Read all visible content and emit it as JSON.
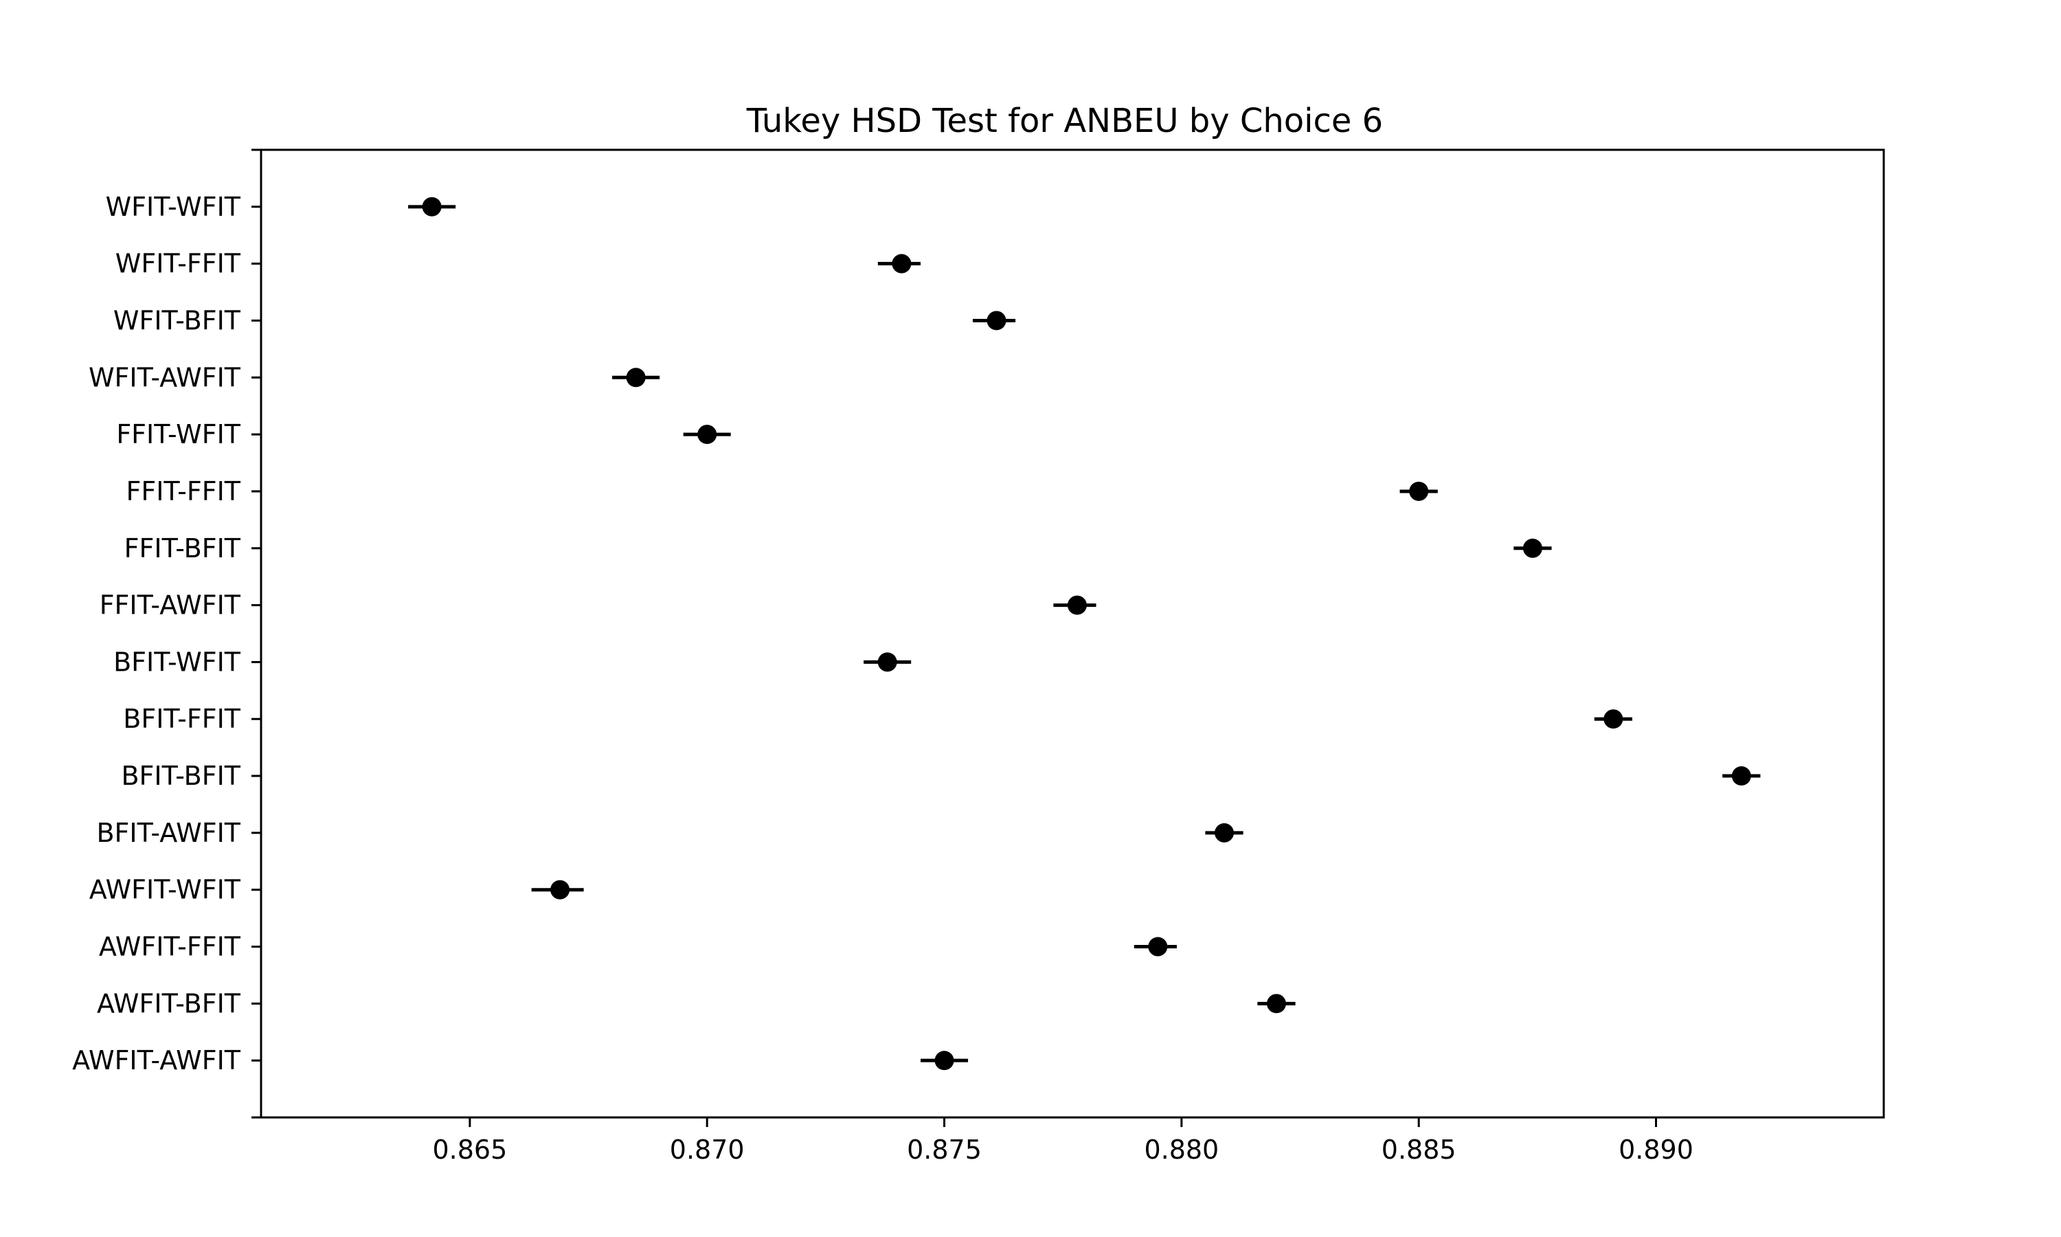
{
  "chart_data": {
    "type": "scatter",
    "title": "Tukey HSD Test for ANBEU by Choice 6",
    "xlabel": "",
    "ylabel": "",
    "xlim": [
      0.8606,
      0.8948
    ],
    "x_ticks": [
      "0.865",
      "0.870",
      "0.875",
      "0.880",
      "0.885",
      "0.890"
    ],
    "x_tick_values": [
      0.865,
      0.87,
      0.875,
      0.88,
      0.885,
      0.89
    ],
    "grid": false,
    "legend": "none",
    "marker_color": "#000000",
    "groups": [
      {
        "label": "WFIT-WFIT",
        "mean": 0.8642,
        "low": 0.8637,
        "high": 0.8647
      },
      {
        "label": "WFIT-FFIT",
        "mean": 0.8741,
        "low": 0.8736,
        "high": 0.8745
      },
      {
        "label": "WFIT-BFIT",
        "mean": 0.8761,
        "low": 0.8756,
        "high": 0.8765
      },
      {
        "label": "WFIT-AWFIT",
        "mean": 0.8685,
        "low": 0.868,
        "high": 0.869
      },
      {
        "label": "FFIT-WFIT",
        "mean": 0.87,
        "low": 0.8695,
        "high": 0.8705
      },
      {
        "label": "FFIT-FFIT",
        "mean": 0.885,
        "low": 0.8846,
        "high": 0.8854
      },
      {
        "label": "FFIT-BFIT",
        "mean": 0.8874,
        "low": 0.887,
        "high": 0.8878
      },
      {
        "label": "FFIT-AWFIT",
        "mean": 0.8778,
        "low": 0.8773,
        "high": 0.8782
      },
      {
        "label": "BFIT-WFIT",
        "mean": 0.8738,
        "low": 0.8733,
        "high": 0.8743
      },
      {
        "label": "BFIT-FFIT",
        "mean": 0.8891,
        "low": 0.8887,
        "high": 0.8895
      },
      {
        "label": "BFIT-BFIT",
        "mean": 0.8918,
        "low": 0.8914,
        "high": 0.8922
      },
      {
        "label": "BFIT-AWFIT",
        "mean": 0.8809,
        "low": 0.8805,
        "high": 0.8813
      },
      {
        "label": "AWFIT-WFIT",
        "mean": 0.8669,
        "low": 0.8663,
        "high": 0.8674
      },
      {
        "label": "AWFIT-FFIT",
        "mean": 0.8795,
        "low": 0.879,
        "high": 0.8799
      },
      {
        "label": "AWFIT-BFIT",
        "mean": 0.882,
        "low": 0.8816,
        "high": 0.8824
      },
      {
        "label": "AWFIT-AWFIT",
        "mean": 0.875,
        "low": 0.8745,
        "high": 0.8755
      }
    ]
  }
}
